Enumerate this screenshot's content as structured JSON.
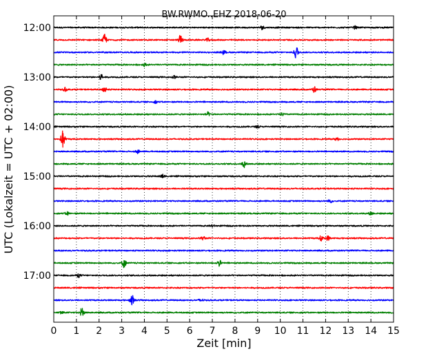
{
  "chart_data": {
    "type": "line",
    "title": "BW.RWMO..EHZ 2018-06-20",
    "xlabel": "Zeit  [min]",
    "ylabel": "UTC (Lokalzeit = UTC + 02:00)",
    "xlim": [
      0,
      15
    ],
    "x_ticks": [
      0,
      1,
      2,
      3,
      4,
      5,
      6,
      7,
      8,
      9,
      10,
      11,
      12,
      13,
      14,
      15
    ],
    "y_tick_labels": [
      "12:00",
      "13:00",
      "14:00",
      "15:00",
      "16:00",
      "17:00"
    ],
    "y_tick_trace_index": [
      0,
      4,
      8,
      12,
      16,
      20
    ],
    "grid": "vertical dotted lines at each minute",
    "legend": "none",
    "series_colors": [
      "#000000",
      "#ff0000",
      "#0000ff",
      "#007f00"
    ],
    "traces": [
      {
        "start": "12:00",
        "color": "#000000",
        "events": [
          {
            "t": 9.2,
            "a": 0.35
          },
          {
            "t": 13.3,
            "a": 0.25
          }
        ]
      },
      {
        "start": "12:15",
        "color": "#ff0000",
        "events": [
          {
            "t": 2.25,
            "a": 1.0
          },
          {
            "t": 5.6,
            "a": 0.9
          },
          {
            "t": 6.8,
            "a": 0.3
          }
        ]
      },
      {
        "start": "12:30",
        "color": "#0000ff",
        "events": [
          {
            "t": 7.5,
            "a": 0.35
          },
          {
            "t": 10.7,
            "a": 1.2
          }
        ]
      },
      {
        "start": "12:45",
        "color": "#007f00",
        "events": [
          {
            "t": 4.0,
            "a": 0.25
          }
        ]
      },
      {
        "start": "13:00",
        "color": "#000000",
        "events": [
          {
            "t": 2.1,
            "a": 0.6
          },
          {
            "t": 5.3,
            "a": 0.25
          }
        ]
      },
      {
        "start": "13:15",
        "color": "#ff0000",
        "events": [
          {
            "t": 0.5,
            "a": 0.3
          },
          {
            "t": 2.25,
            "a": 0.6
          },
          {
            "t": 11.5,
            "a": 0.5
          }
        ]
      },
      {
        "start": "13:30",
        "color": "#0000ff",
        "events": [
          {
            "t": 4.5,
            "a": 0.2
          }
        ]
      },
      {
        "start": "13:45",
        "color": "#007f00",
        "events": [
          {
            "t": 6.8,
            "a": 0.35
          },
          {
            "t": 10.1,
            "a": 0.25
          }
        ]
      },
      {
        "start": "14:00",
        "color": "#000000",
        "events": [
          {
            "t": 9.0,
            "a": 0.2
          }
        ]
      },
      {
        "start": "14:15",
        "color": "#ff0000",
        "events": [
          {
            "t": 0.4,
            "a": 1.6
          },
          {
            "t": 12.5,
            "a": 0.3
          }
        ]
      },
      {
        "start": "14:30",
        "color": "#0000ff",
        "events": [
          {
            "t": 3.7,
            "a": 0.3
          }
        ]
      },
      {
        "start": "14:45",
        "color": "#007f00",
        "events": [
          {
            "t": 8.4,
            "a": 0.6
          }
        ]
      },
      {
        "start": "15:00",
        "color": "#000000",
        "events": [
          {
            "t": 4.8,
            "a": 0.3
          }
        ]
      },
      {
        "start": "15:15",
        "color": "#ff0000",
        "events": []
      },
      {
        "start": "15:30",
        "color": "#0000ff",
        "events": [
          {
            "t": 12.2,
            "a": 0.3
          }
        ]
      },
      {
        "start": "15:45",
        "color": "#007f00",
        "events": [
          {
            "t": 0.6,
            "a": 0.3
          },
          {
            "t": 14.0,
            "a": 0.3
          }
        ]
      },
      {
        "start": "16:00",
        "color": "#000000",
        "events": [
          {
            "t": 7.0,
            "a": 0.2
          }
        ]
      },
      {
        "start": "16:15",
        "color": "#ff0000",
        "events": [
          {
            "t": 6.6,
            "a": 0.35
          },
          {
            "t": 11.8,
            "a": 0.45
          },
          {
            "t": 12.1,
            "a": 0.4
          }
        ]
      },
      {
        "start": "16:30",
        "color": "#0000ff",
        "events": []
      },
      {
        "start": "16:45",
        "color": "#007f00",
        "events": [
          {
            "t": 3.1,
            "a": 0.8
          },
          {
            "t": 7.3,
            "a": 0.55
          }
        ]
      },
      {
        "start": "17:00",
        "color": "#000000",
        "events": [
          {
            "t": 1.1,
            "a": 0.3
          }
        ]
      },
      {
        "start": "17:15",
        "color": "#ff0000",
        "events": []
      },
      {
        "start": "17:30",
        "color": "#0000ff",
        "events": [
          {
            "t": 3.45,
            "a": 1.0
          },
          {
            "t": 6.5,
            "a": 0.3
          }
        ]
      },
      {
        "start": "17:45",
        "color": "#007f00",
        "events": [
          {
            "t": 0.35,
            "a": 0.3
          },
          {
            "t": 1.25,
            "a": 0.9
          }
        ]
      }
    ]
  }
}
